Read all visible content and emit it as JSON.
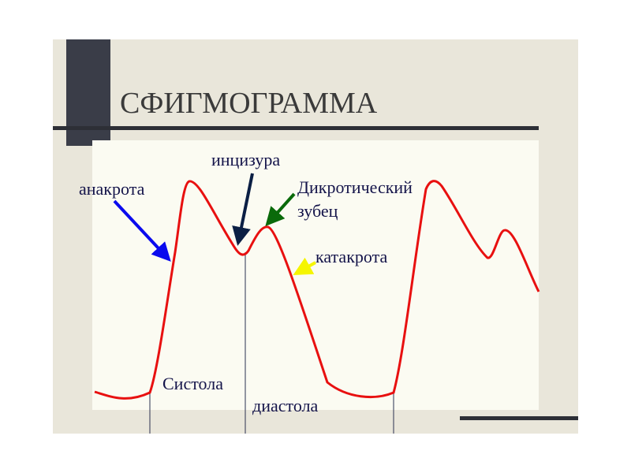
{
  "header": {
    "title": "СФИГМОГРАММА"
  },
  "labels": {
    "anacrota": "анакрота",
    "incisura": "инцизура",
    "dicrotic_1": "Дикротический",
    "dicrotic_2": "зубец",
    "catacrota": "катакрота",
    "systole": "Систола",
    "diastole": "диастола"
  }
}
